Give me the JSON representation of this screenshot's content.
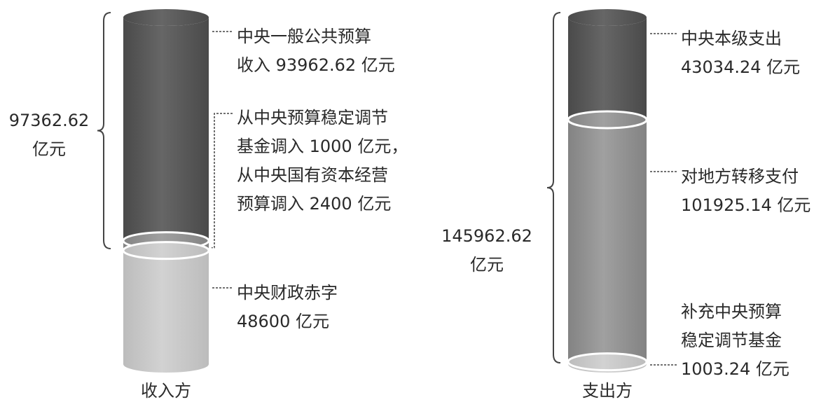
{
  "chart_data": {
    "type": "bar",
    "subtype": "stacked-cylinder",
    "unit": "亿元",
    "colors": {
      "dark": "#5a5a5a",
      "medium": "#8f8f8f",
      "light": "#c6c6c6",
      "text": "#2a2a2a"
    },
    "columns": [
      {
        "name": "收入方",
        "total": {
          "lines": [
            "97362.62",
            "亿元"
          ],
          "value": 97362.62
        },
        "segments": [
          {
            "value": 93962.62,
            "lines": [
              "中央一般公共预算",
              "收入 93962.62 亿元"
            ],
            "color": "dark"
          },
          {
            "value": 3400,
            "lines": [
              "从中央预算稳定调节",
              "基金调入 1000 亿元，",
              "从中央国有资本经营",
              "预算调入 2400 亿元"
            ],
            "color": "medium"
          },
          {
            "value": 48600,
            "lines": [
              "中央财政赤字",
              "48600 亿元"
            ],
            "color": "light"
          }
        ]
      },
      {
        "name": "支出方",
        "total": {
          "lines": [
            "145962.62",
            "亿元"
          ],
          "value": 145962.62
        },
        "segments": [
          {
            "value": 43034.24,
            "lines": [
              "中央本级支出",
              "43034.24 亿元"
            ],
            "color": "dark"
          },
          {
            "value": 101925.14,
            "lines": [
              "对地方转移支付",
              "101925.14 亿元"
            ],
            "color": "medium"
          },
          {
            "value": 1003.24,
            "lines": [
              "补充中央预算",
              "稳定调节基金",
              "1003.24 亿元"
            ],
            "color": "light"
          }
        ]
      }
    ]
  }
}
